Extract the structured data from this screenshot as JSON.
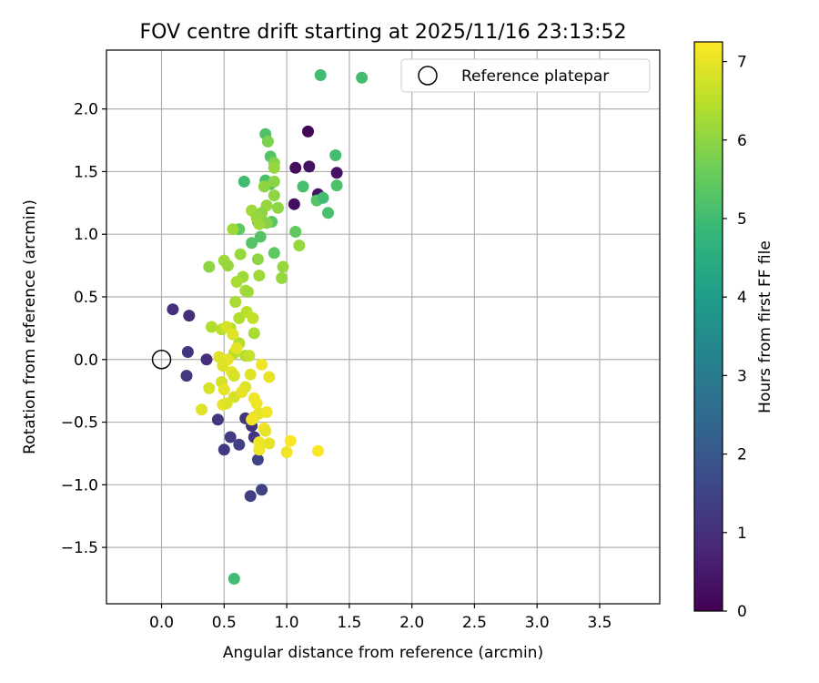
{
  "chart_data": {
    "type": "scatter",
    "title": "FOV centre drift starting at 2025/11/16 23:13:52",
    "xlabel": "Angular distance from reference (arcmin)",
    "ylabel": "Rotation from reference (arcmin)",
    "xlim": [
      -0.44,
      3.98
    ],
    "ylim": [
      -1.95,
      2.47
    ],
    "xticks": [
      0.0,
      0.5,
      1.0,
      1.5,
      2.0,
      2.5,
      3.0,
      3.5
    ],
    "xtick_labels": [
      "0.0",
      "0.5",
      "1.0",
      "1.5",
      "2.0",
      "2.5",
      "3.0",
      "3.5"
    ],
    "yticks": [
      -1.5,
      -1.0,
      -0.5,
      0.0,
      0.5,
      1.0,
      1.5,
      2.0
    ],
    "ytick_labels": [
      "−1.5",
      "−1.0",
      "−0.5",
      "0.0",
      "0.5",
      "1.0",
      "1.5",
      "2.0"
    ],
    "grid": true,
    "legend": {
      "position": "top-right",
      "entries": [
        "Reference platepar"
      ]
    },
    "reference_point": {
      "x": 0.0,
      "y": 0.0,
      "label": "Reference platepar"
    },
    "colorbar": {
      "label": "Hours from first FF file",
      "min": 0,
      "max": 7.25,
      "ticks": [
        0,
        1,
        2,
        3,
        4,
        5,
        6,
        7
      ],
      "colormap": [
        "#440154",
        "#482878",
        "#3e4989",
        "#31688e",
        "#26828e",
        "#1f9e89",
        "#35b779",
        "#6ece58",
        "#b5de2b",
        "#fde725"
      ]
    },
    "series": [
      {
        "name": "hour0",
        "points": [
          [
            1.17,
            1.82,
            0.1
          ],
          [
            1.07,
            1.53,
            0.2
          ],
          [
            1.18,
            1.54,
            0.3
          ],
          [
            1.4,
            1.49,
            0.35
          ],
          [
            1.25,
            1.32,
            0.4
          ],
          [
            1.06,
            1.24,
            0.25
          ]
        ]
      },
      {
        "name": "hour1",
        "points": [
          [
            0.09,
            0.4,
            1.0
          ],
          [
            0.22,
            0.35,
            0.95
          ],
          [
            0.21,
            0.06,
            1.1
          ],
          [
            0.36,
            0.0,
            1.0
          ],
          [
            0.2,
            -0.13,
            1.2
          ],
          [
            0.45,
            -0.48,
            1.15
          ],
          [
            0.55,
            -0.62,
            1.3
          ],
          [
            0.67,
            -0.47,
            1.1
          ],
          [
            0.62,
            -0.68,
            1.4
          ],
          [
            0.5,
            -0.72,
            1.25
          ],
          [
            0.72,
            -0.53,
            1.05
          ],
          [
            0.74,
            -0.62,
            1.2
          ],
          [
            0.77,
            -0.8,
            1.5
          ],
          [
            0.8,
            -1.04,
            1.45
          ],
          [
            0.71,
            -1.09,
            1.35
          ]
        ]
      },
      {
        "name": "hour5",
        "points": [
          [
            1.27,
            2.27,
            5.0
          ],
          [
            1.6,
            2.25,
            5.05
          ],
          [
            0.83,
            1.8,
            5.2
          ],
          [
            0.87,
            1.62,
            5.3
          ],
          [
            1.39,
            1.63,
            5.05
          ],
          [
            0.66,
            1.42,
            5.0
          ],
          [
            0.83,
            1.43,
            5.15
          ],
          [
            0.87,
            1.4,
            5.3
          ],
          [
            1.13,
            1.38,
            5.1
          ],
          [
            1.4,
            1.39,
            5.2
          ],
          [
            1.24,
            1.27,
            5.3
          ],
          [
            1.29,
            1.29,
            5.0
          ],
          [
            1.33,
            1.17,
            5.15
          ],
          [
            0.62,
            1.04,
            5.4
          ],
          [
            0.77,
            1.1,
            5.3
          ],
          [
            0.88,
            1.1,
            5.35
          ],
          [
            1.07,
            1.02,
            5.45
          ],
          [
            0.79,
            0.98,
            5.3
          ],
          [
            0.72,
            0.93,
            5.3
          ],
          [
            0.9,
            0.85,
            5.4
          ],
          [
            0.58,
            -1.75,
            5.0
          ]
        ]
      },
      {
        "name": "hour6",
        "points": [
          [
            0.85,
            1.74,
            5.8
          ],
          [
            0.9,
            1.57,
            5.9
          ],
          [
            0.9,
            1.53,
            6.1
          ],
          [
            0.9,
            1.42,
            5.95
          ],
          [
            0.82,
            1.38,
            6.0
          ],
          [
            0.9,
            1.31,
            6.0
          ],
          [
            0.84,
            1.23,
            6.1
          ],
          [
            0.93,
            1.21,
            6.0
          ],
          [
            0.72,
            1.19,
            6.2
          ],
          [
            0.8,
            1.17,
            6.0
          ],
          [
            0.76,
            1.13,
            6.1
          ],
          [
            0.84,
            1.09,
            5.9
          ],
          [
            0.57,
            1.04,
            6.2
          ],
          [
            0.78,
            1.08,
            6.2
          ],
          [
            1.1,
            0.91,
            6.1
          ],
          [
            0.63,
            0.84,
            6.1
          ],
          [
            0.77,
            0.8,
            6.0
          ],
          [
            0.5,
            0.79,
            6.2
          ],
          [
            0.38,
            0.74,
            6.0
          ],
          [
            0.53,
            0.75,
            6.1
          ],
          [
            0.97,
            0.74,
            6.1
          ],
          [
            0.96,
            0.65,
            6.1
          ],
          [
            0.65,
            0.66,
            6.2
          ],
          [
            0.78,
            0.67,
            6.2
          ],
          [
            0.6,
            0.62,
            6.3
          ],
          [
            0.67,
            0.55,
            6.3
          ],
          [
            0.69,
            0.54,
            6.2
          ],
          [
            0.59,
            0.46,
            6.3
          ],
          [
            0.62,
            0.33,
            6.4
          ],
          [
            0.68,
            0.38,
            6.5
          ],
          [
            0.73,
            0.33,
            6.6
          ],
          [
            0.4,
            0.26,
            6.4
          ],
          [
            0.48,
            0.24,
            6.5
          ],
          [
            0.55,
            0.25,
            6.4
          ],
          [
            0.74,
            0.21,
            6.3
          ],
          [
            0.62,
            0.13,
            6.4
          ],
          [
            0.58,
            0.05,
            6.5
          ],
          [
            0.67,
            0.03,
            6.4
          ],
          [
            0.7,
            0.03,
            6.6
          ]
        ]
      },
      {
        "name": "hour7",
        "points": [
          [
            0.52,
            0.26,
            6.8
          ],
          [
            0.57,
            0.2,
            6.9
          ],
          [
            0.6,
            0.09,
            7.0
          ],
          [
            0.46,
            0.02,
            6.9
          ],
          [
            0.53,
            0.0,
            7.0
          ],
          [
            0.49,
            -0.05,
            6.9
          ],
          [
            0.56,
            -0.1,
            7.0
          ],
          [
            0.58,
            -0.13,
            6.8
          ],
          [
            0.8,
            -0.04,
            7.1
          ],
          [
            0.71,
            -0.12,
            6.9
          ],
          [
            0.86,
            -0.14,
            7.0
          ],
          [
            0.48,
            -0.18,
            6.8
          ],
          [
            0.38,
            -0.23,
            6.8
          ],
          [
            0.5,
            -0.24,
            7.0
          ],
          [
            0.67,
            -0.22,
            6.9
          ],
          [
            0.58,
            -0.3,
            6.8
          ],
          [
            0.64,
            -0.26,
            7.0
          ],
          [
            0.74,
            -0.31,
            7.1
          ],
          [
            0.49,
            -0.36,
            7.0
          ],
          [
            0.52,
            -0.35,
            6.9
          ],
          [
            0.76,
            -0.35,
            7.1
          ],
          [
            0.32,
            -0.4,
            6.9
          ],
          [
            0.78,
            -0.43,
            7.0
          ],
          [
            0.84,
            -0.42,
            7.1
          ],
          [
            0.74,
            -0.46,
            7.0
          ],
          [
            0.72,
            -0.48,
            7.1
          ],
          [
            0.82,
            -0.55,
            7.1
          ],
          [
            0.83,
            -0.57,
            7.0
          ],
          [
            0.78,
            -0.66,
            7.1
          ],
          [
            0.86,
            -0.67,
            7.0
          ],
          [
            0.78,
            -0.72,
            7.1
          ],
          [
            1.03,
            -0.65,
            7.2
          ],
          [
            1.0,
            -0.74,
            7.1
          ],
          [
            1.25,
            -0.73,
            7.2
          ]
        ]
      }
    ]
  }
}
